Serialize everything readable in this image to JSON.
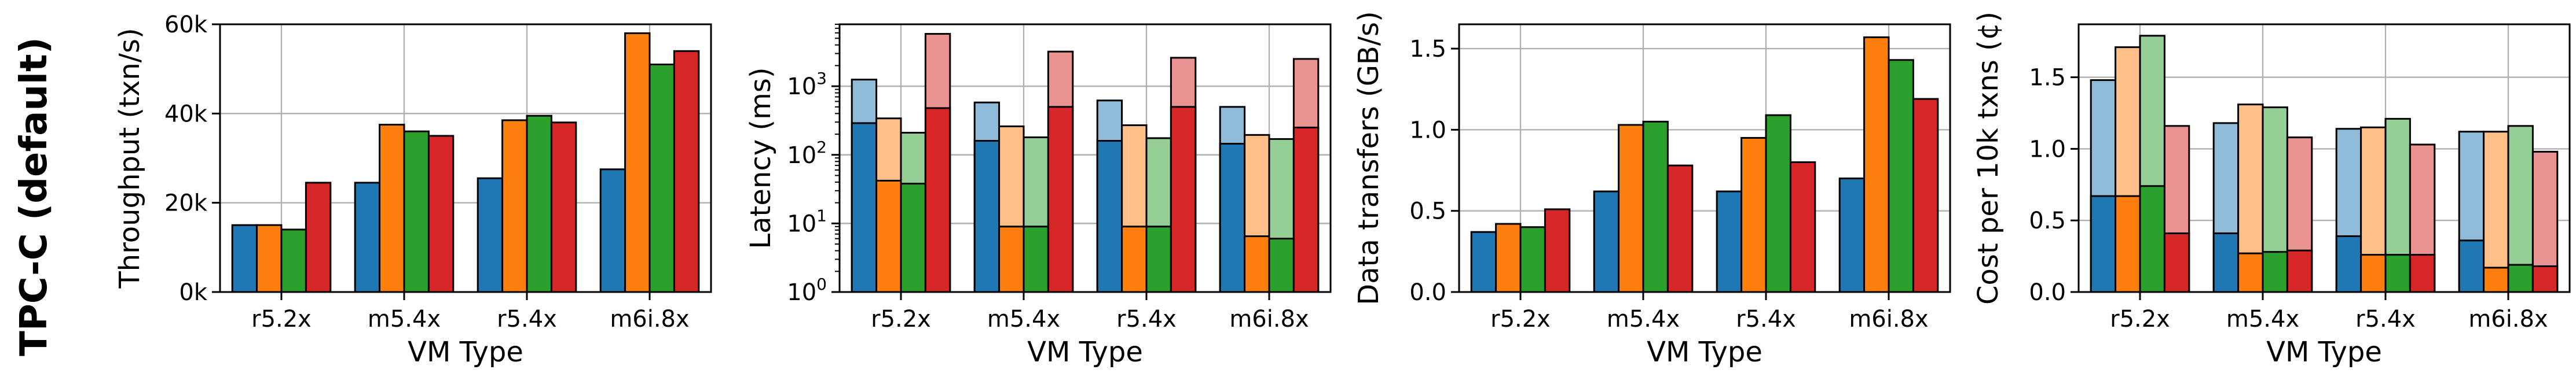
{
  "row_label": "TPC-C (default)",
  "colors": {
    "dark": [
      "#1f77b4",
      "#ff7f0e",
      "#2ca02c",
      "#d62728"
    ],
    "light": [
      "#8fbbd9",
      "#ffbf86",
      "#95cf95",
      "#ea9393"
    ],
    "grid": "#b0b0b0"
  },
  "chart_data": [
    {
      "type": "bar",
      "categories": [
        "r5.2x",
        "m5.4x",
        "r5.4x",
        "m6i.8x"
      ],
      "xlabel": "VM Type",
      "ylabel": "Throughput (txn/s)",
      "scale": "linear",
      "ylim": [
        0,
        60000
      ],
      "ticks": [
        0,
        20000,
        40000,
        60000
      ],
      "tick_labels": [
        "0k",
        "20k",
        "40k",
        "60k"
      ],
      "grid": true,
      "series": [
        {
          "values": [
            15000,
            24500,
            25500,
            27500
          ]
        },
        {
          "values": [
            15000,
            37500,
            38500,
            58000
          ]
        },
        {
          "values": [
            14000,
            36000,
            39500,
            51000
          ]
        },
        {
          "values": [
            24500,
            35000,
            38000,
            54000
          ]
        }
      ]
    },
    {
      "type": "bar",
      "categories": [
        "r5.2x",
        "m5.4x",
        "r5.4x",
        "m6i.8x"
      ],
      "xlabel": "VM Type",
      "ylabel": "Latency (ms)",
      "scale": "log",
      "ylim": [
        1,
        8000
      ],
      "ticks": [
        1,
        10,
        100,
        1000
      ],
      "tick_labels": [
        "10^0",
        "10^1",
        "10^2",
        "10^3"
      ],
      "grid": true,
      "series": [
        {
          "values": [
            290,
            160,
            160,
            145
          ],
          "upper": [
            1250,
            580,
            620,
            500
          ]
        },
        {
          "values": [
            42,
            9,
            9,
            6.5
          ],
          "upper": [
            340,
            260,
            270,
            195
          ]
        },
        {
          "values": [
            38,
            9,
            9,
            6
          ],
          "upper": [
            210,
            180,
            175,
            170
          ]
        },
        {
          "values": [
            480,
            500,
            500,
            250
          ],
          "upper": [
            5800,
            3200,
            2600,
            2500
          ]
        }
      ]
    },
    {
      "type": "bar",
      "categories": [
        "r5.2x",
        "m5.4x",
        "r5.4x",
        "m6i.8x"
      ],
      "xlabel": "VM Type",
      "ylabel": "Data transfers (GB/s)",
      "scale": "linear",
      "ylim": [
        0,
        1.65
      ],
      "ticks": [
        0,
        0.5,
        1.0,
        1.5
      ],
      "tick_labels": [
        "0.0",
        "0.5",
        "1.0",
        "1.5"
      ],
      "grid": true,
      "series": [
        {
          "values": [
            0.37,
            0.62,
            0.62,
            0.7
          ]
        },
        {
          "values": [
            0.42,
            1.03,
            0.95,
            1.57
          ]
        },
        {
          "values": [
            0.4,
            1.05,
            1.09,
            1.43
          ]
        },
        {
          "values": [
            0.51,
            0.78,
            0.8,
            1.19
          ]
        }
      ]
    },
    {
      "type": "bar",
      "categories": [
        "r5.2x",
        "m5.4x",
        "r5.4x",
        "m6i.8x"
      ],
      "xlabel": "VM Type",
      "ylabel": "Cost per 10k txns (¢)",
      "scale": "linear",
      "ylim": [
        0,
        1.87
      ],
      "ticks": [
        0,
        0.5,
        1.0,
        1.5
      ],
      "tick_labels": [
        "0.0",
        "0.5",
        "1.0",
        "1.5"
      ],
      "grid": true,
      "series": [
        {
          "values": [
            0.67,
            0.41,
            0.39,
            0.36
          ],
          "upper": [
            1.48,
            1.18,
            1.14,
            1.12
          ]
        },
        {
          "values": [
            0.67,
            0.27,
            0.26,
            0.17
          ],
          "upper": [
            1.71,
            1.31,
            1.15,
            1.12
          ]
        },
        {
          "values": [
            0.74,
            0.28,
            0.26,
            0.19
          ],
          "upper": [
            1.79,
            1.29,
            1.21,
            1.16
          ]
        },
        {
          "values": [
            0.41,
            0.29,
            0.26,
            0.18
          ],
          "upper": [
            1.16,
            1.08,
            1.03,
            0.98
          ]
        }
      ]
    }
  ]
}
